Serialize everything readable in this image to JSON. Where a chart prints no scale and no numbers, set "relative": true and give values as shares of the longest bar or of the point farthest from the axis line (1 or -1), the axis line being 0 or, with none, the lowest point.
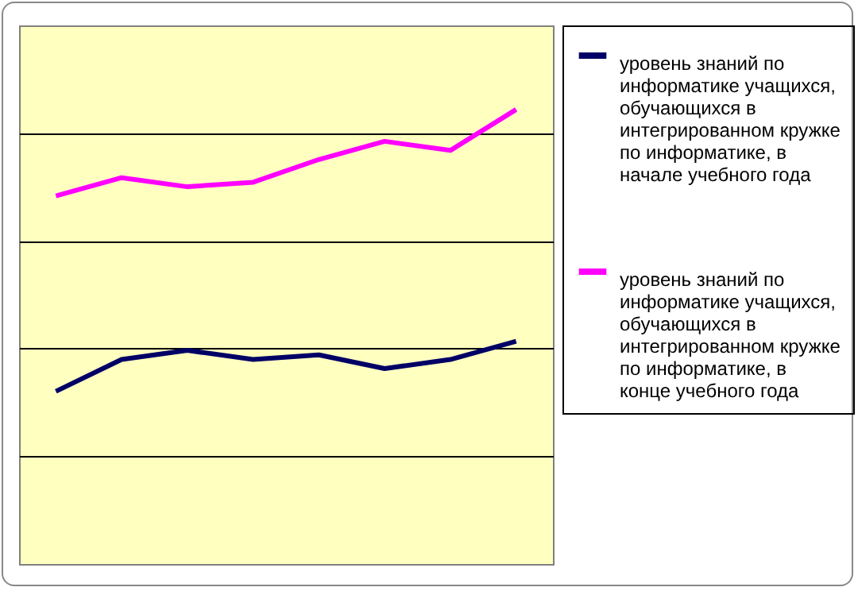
{
  "chart_data": {
    "type": "line",
    "relative": true,
    "grid": "y",
    "legend": "right",
    "categories": [
      null,
      null,
      null,
      null,
      null,
      null,
      null,
      null
    ],
    "line_style": "solid",
    "marker": "none",
    "series": [
      {
        "name": "уровень знаний  по информатике учащихся, обучающихся в интегрированном кружке по информатике, в начале  учебного года",
        "color": "#000066",
        "values": [
          0.38,
          0.45,
          0.47,
          0.45,
          0.46,
          0.43,
          0.45,
          0.49
        ]
      },
      {
        "name": "уровень знаний  по информатике учащихся, обучающихся в интегрированном кружке по информатике, в конце учебного года",
        "color": "#ff00ff",
        "values": [
          0.81,
          0.85,
          0.83,
          0.84,
          0.89,
          0.93,
          0.91,
          1
        ]
      }
    ]
  }
}
